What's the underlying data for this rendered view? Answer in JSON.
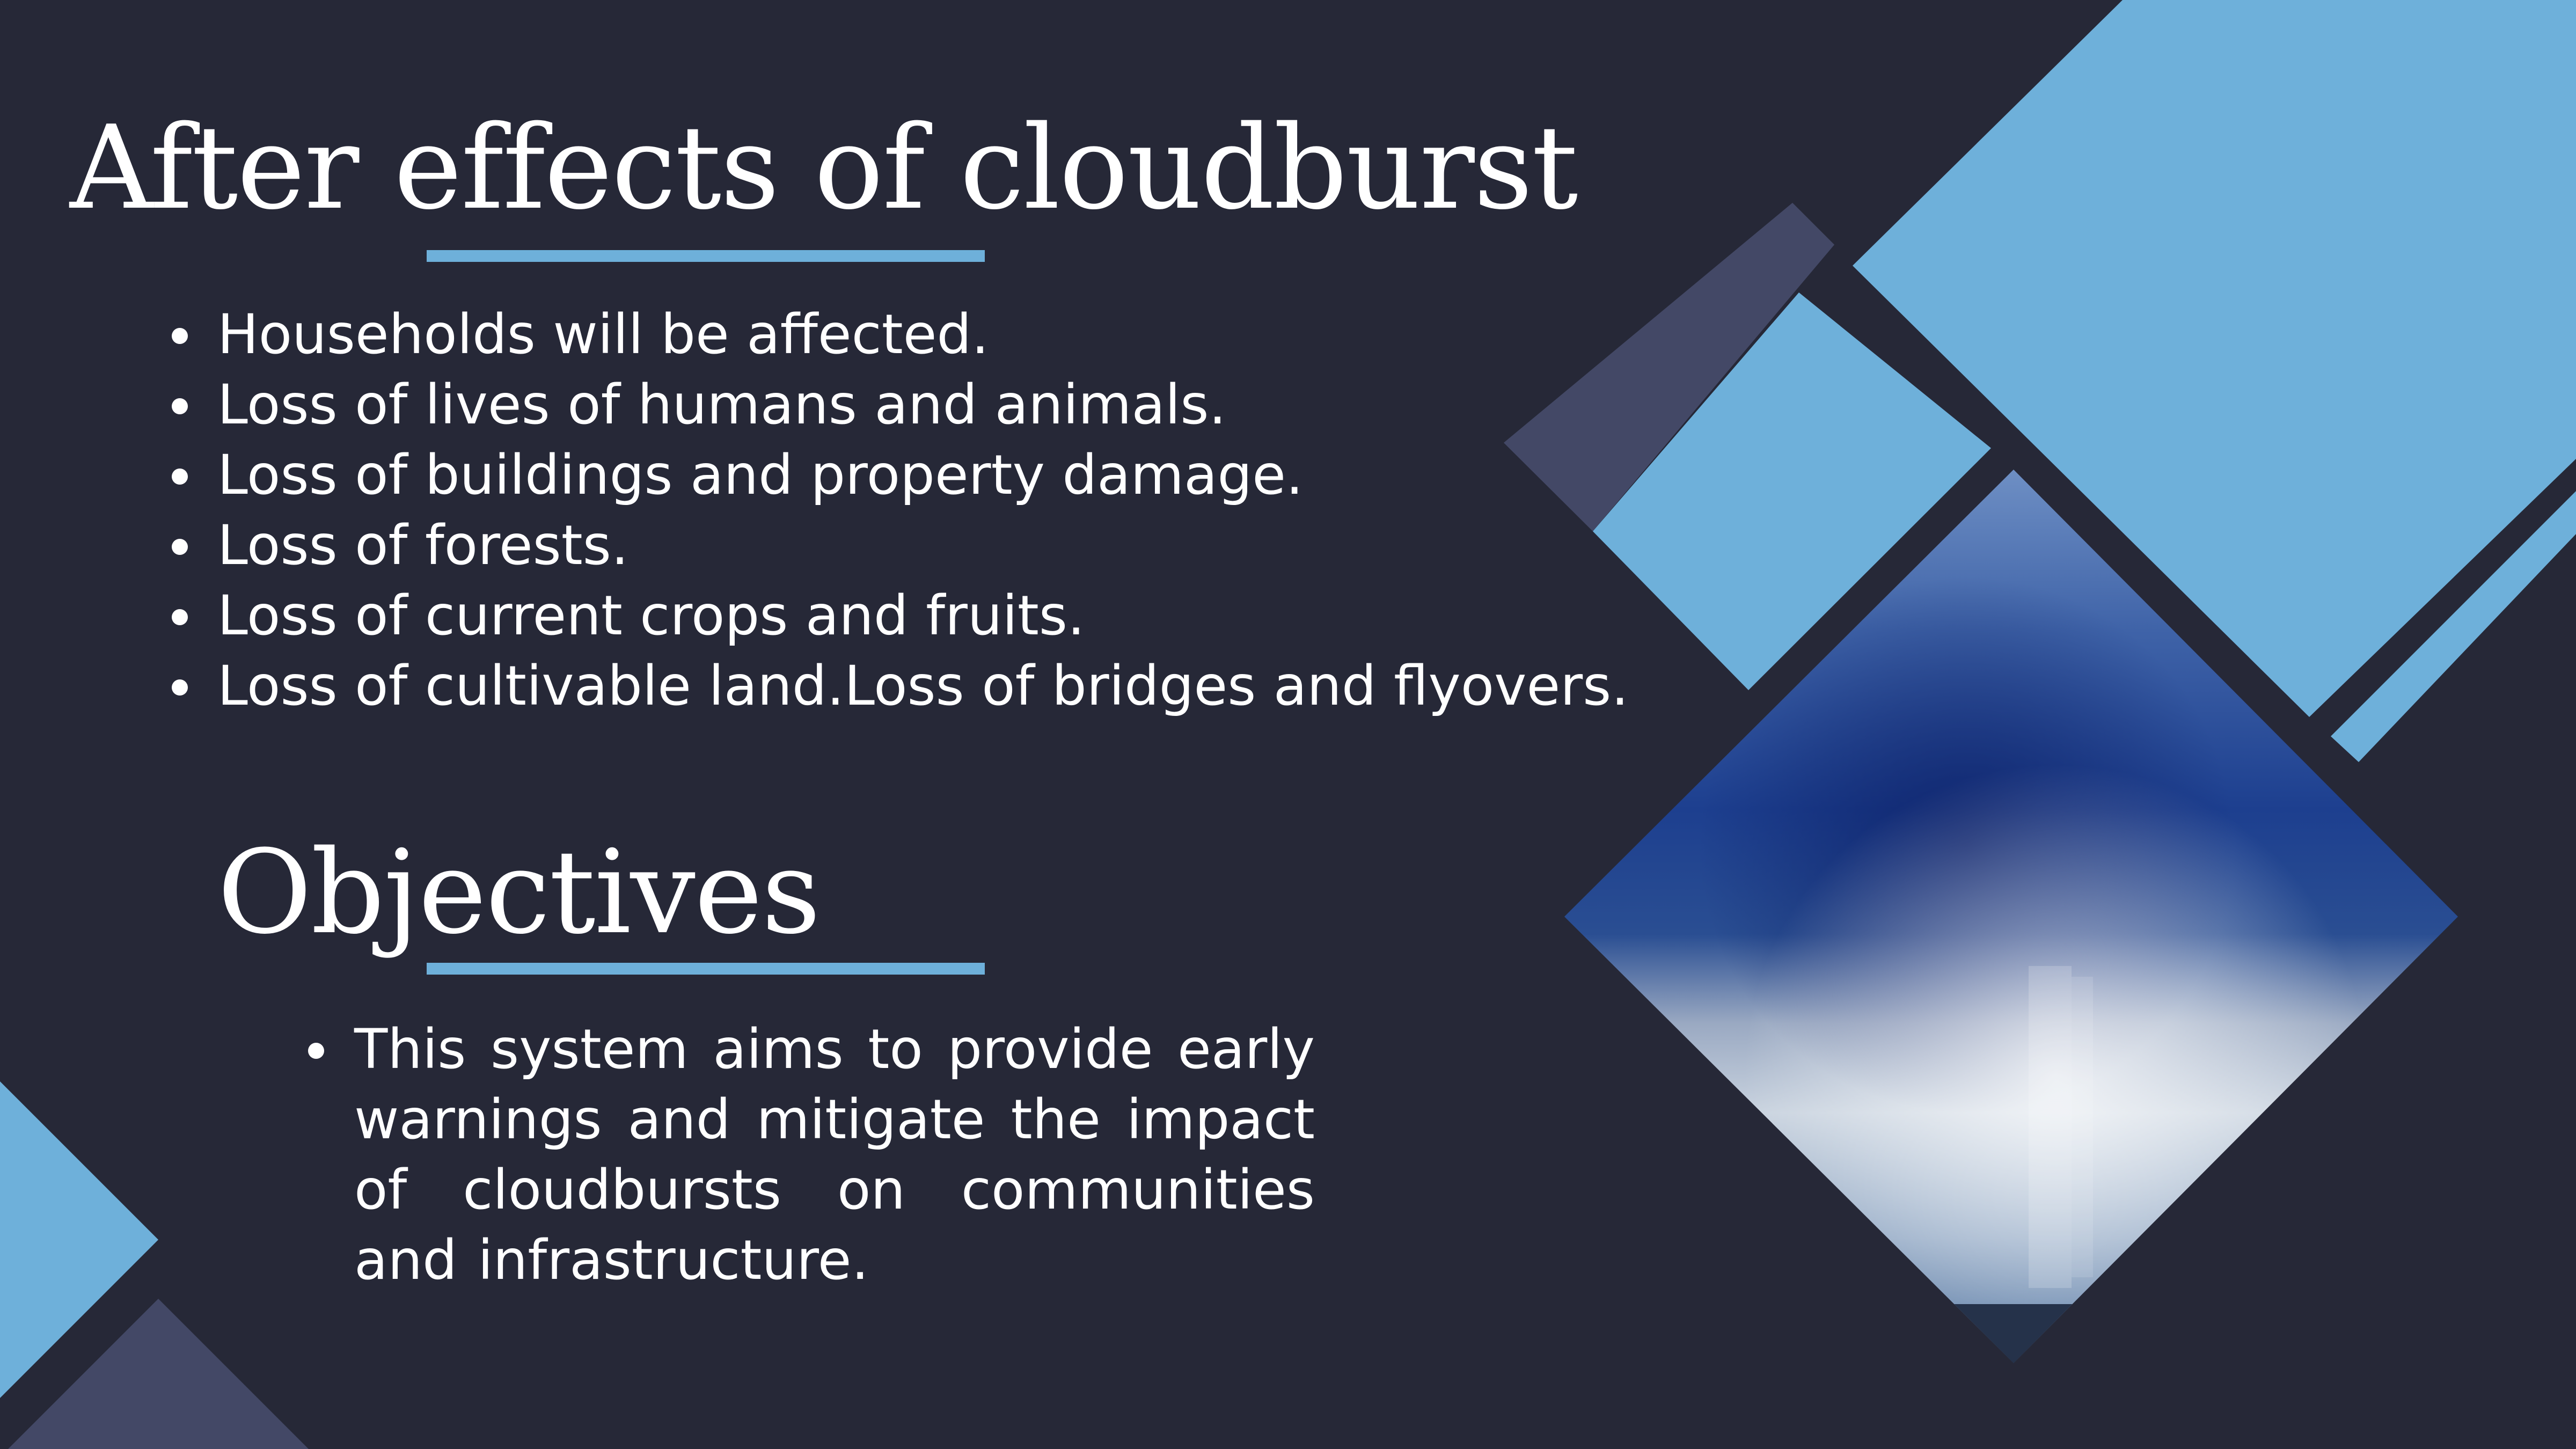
{
  "slide": {
    "title": "After effects of cloudburst",
    "effects": [
      "Households will be affected.",
      "Loss of lives of humans and animals.",
      "Loss of buildings and property damage.",
      "Loss of forests.",
      "Loss of current crops and fruits.",
      "Loss of cultivable land.Loss of bridges and flyovers."
    ],
    "objectives_title": "Objectives",
    "objectives": [
      " This system aims to provide early warnings and mitigate the impact of cloudbursts on communities and infrastructure."
    ]
  },
  "colors": {
    "background": "#262837",
    "accent_blue": "#6eb0da",
    "accent_slate": "#434866",
    "text": "#ffffff"
  },
  "image": {
    "subject": "storm-cloud-photo"
  }
}
